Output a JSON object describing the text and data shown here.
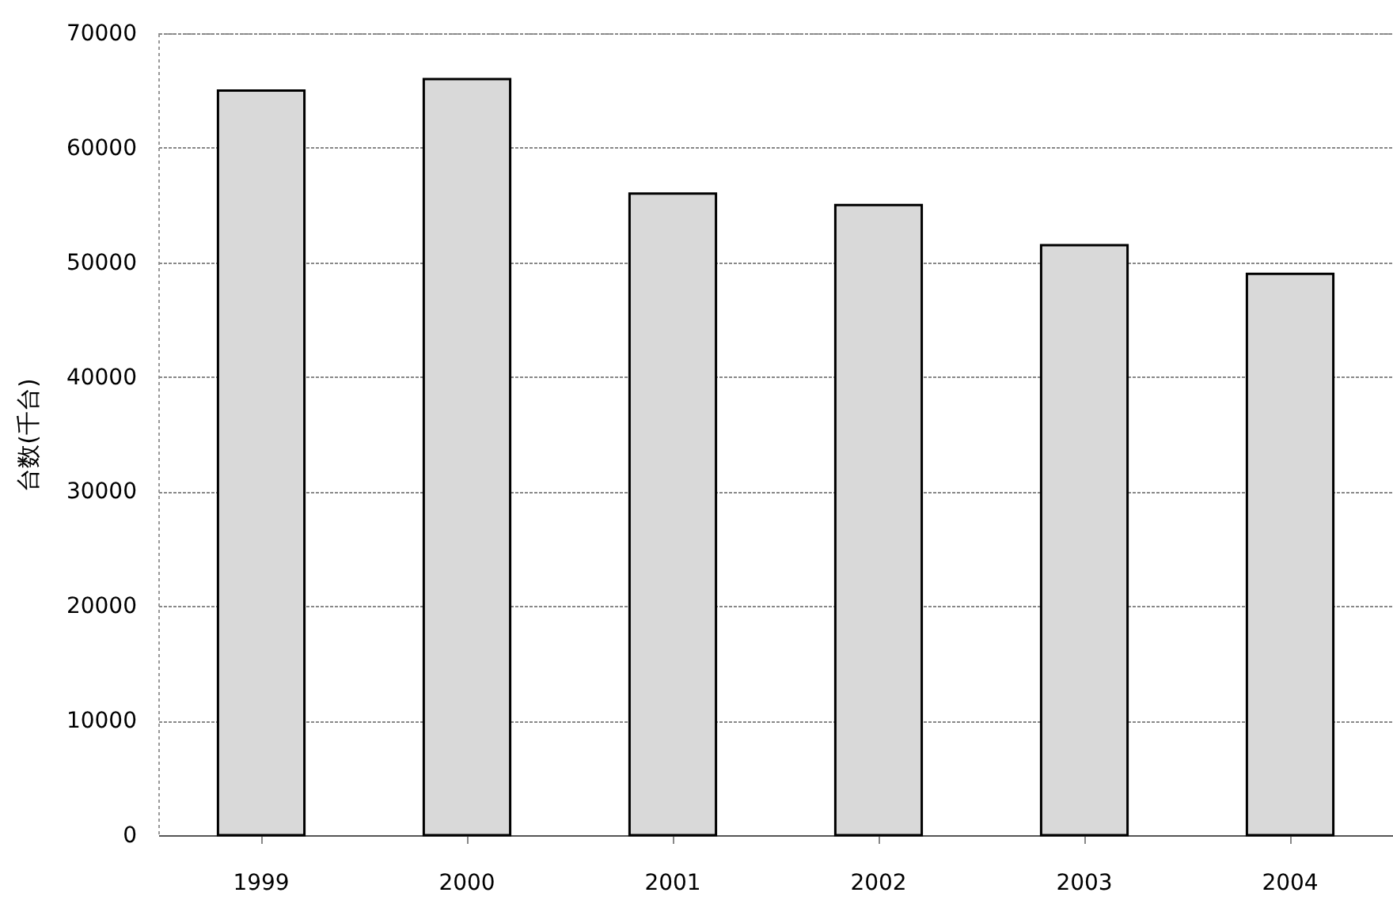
{
  "chart_data": {
    "type": "bar",
    "ylabel": "台数(千台)",
    "categories": [
      "1999",
      "2000",
      "2001",
      "2002",
      "2003",
      "2004"
    ],
    "values": [
      65000,
      66000,
      56000,
      55000,
      51500,
      49000
    ],
    "color": "#d9d9d9",
    "ylim": [
      0,
      70000
    ],
    "yticks": [
      0,
      10000,
      20000,
      30000,
      40000,
      50000,
      60000,
      70000
    ],
    "grid": "y"
  }
}
